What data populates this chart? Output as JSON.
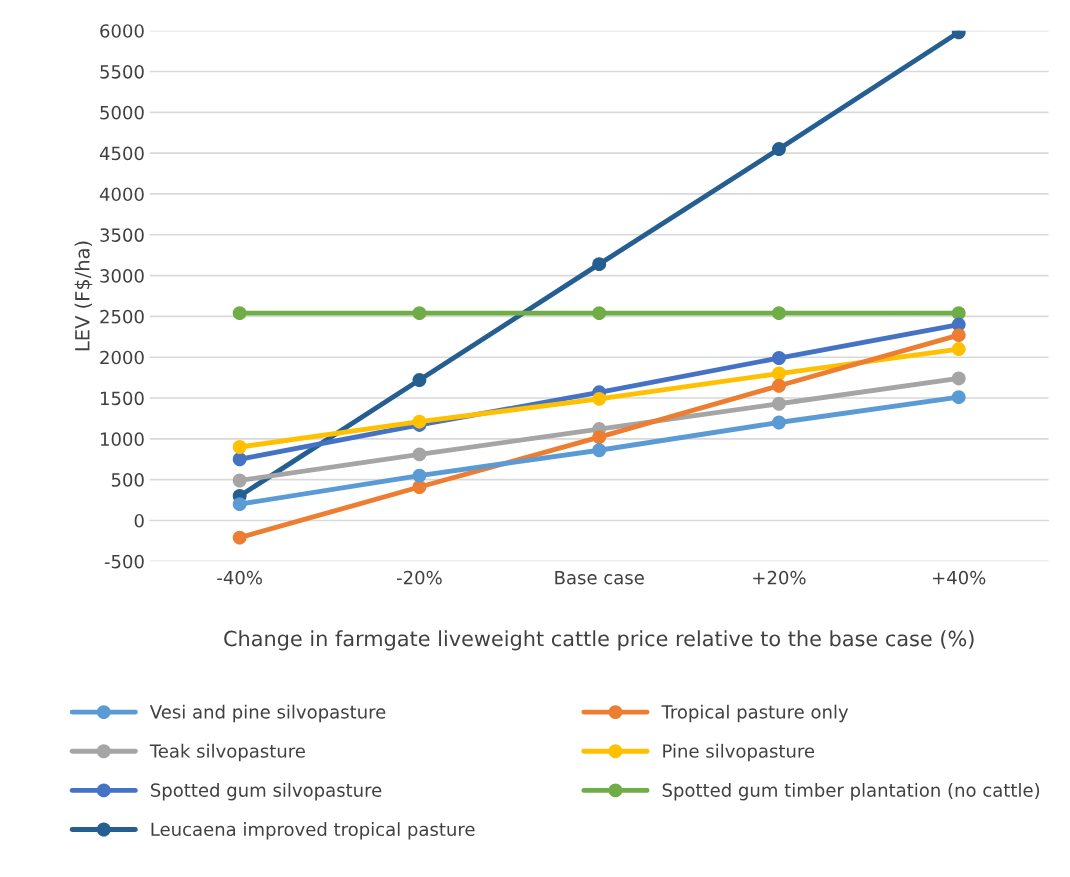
{
  "chart_data": {
    "type": "line",
    "xlabel": "Change in farmgate liveweight cattle price relative to the base case (%)",
    "ylabel": "LEV (F$/ha)",
    "categories": [
      "-40%",
      "-20%",
      "Base case",
      "+20%",
      "+40%"
    ],
    "series": [
      {
        "name": "Vesi and pine silvopasture",
        "color": "#5b9bd5",
        "values": [
          200,
          550,
          860,
          1200,
          1510
        ]
      },
      {
        "name": "Tropical pasture only",
        "color": "#ed7d31",
        "values": [
          -210,
          410,
          1020,
          1650,
          2270
        ]
      },
      {
        "name": "Teak silvopasture",
        "color": "#a5a5a5",
        "values": [
          490,
          810,
          1120,
          1430,
          1740
        ]
      },
      {
        "name": "Pine silvopasture",
        "color": "#ffc000",
        "values": [
          900,
          1210,
          1490,
          1800,
          2100
        ]
      },
      {
        "name": "Spotted gum silvopasture",
        "color": "#4472c4",
        "values": [
          750,
          1170,
          1570,
          1990,
          2400
        ]
      },
      {
        "name": "Spotted gum timber plantation (no cattle)",
        "color": "#70ad47",
        "values": [
          2540,
          2540,
          2540,
          2540,
          2540
        ]
      },
      {
        "name": "Leucaena improved tropical pasture",
        "color": "#255e91",
        "values": [
          300,
          1720,
          3140,
          4550,
          5980
        ]
      }
    ],
    "ylim": [
      -500,
      6000
    ],
    "yticks": [
      -500,
      0,
      500,
      1000,
      1500,
      2000,
      2500,
      3000,
      3500,
      4000,
      4500,
      5000,
      5500,
      6000
    ],
    "grid": "y",
    "legend": "bottom",
    "marker": "circle",
    "line_style": "solid"
  }
}
